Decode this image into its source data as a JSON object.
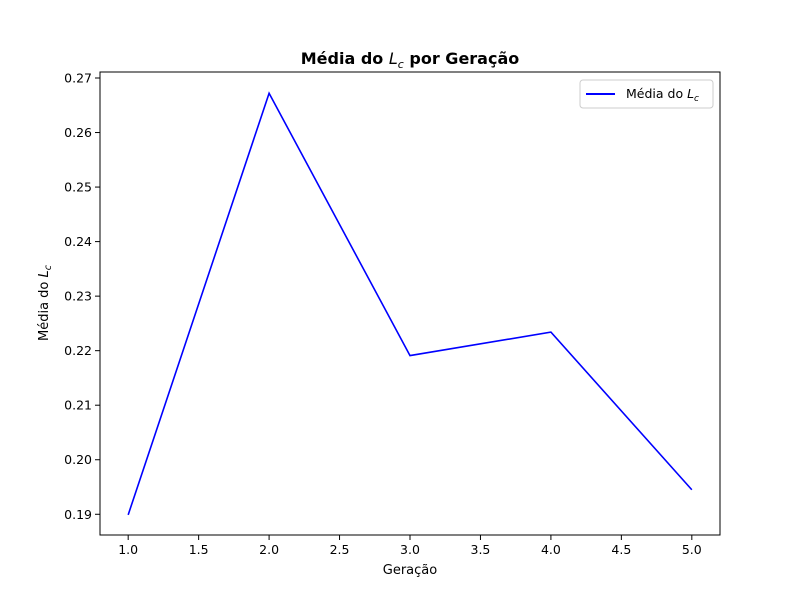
{
  "chart_data": {
    "type": "line",
    "title": {
      "prefix": "Média do ",
      "var": "L",
      "sub": "c",
      "suffix": " por Geração"
    },
    "xlabel": "Geração",
    "ylabel": {
      "prefix": "Média do ",
      "var": "L",
      "sub": "c"
    },
    "xlim": [
      0.8,
      5.2
    ],
    "ylim": [
      0.1862,
      0.2711
    ],
    "x_ticks": [
      1.0,
      1.5,
      2.0,
      2.5,
      3.0,
      3.5,
      4.0,
      4.5,
      5.0
    ],
    "x_tick_labels": [
      "1.0",
      "1.5",
      "2.0",
      "2.5",
      "3.0",
      "3.5",
      "4.0",
      "4.5",
      "5.0"
    ],
    "y_ticks": [
      0.19,
      0.2,
      0.21,
      0.22,
      0.23,
      0.24,
      0.25,
      0.26,
      0.27
    ],
    "y_tick_labels": [
      "0.19",
      "0.20",
      "0.21",
      "0.22",
      "0.23",
      "0.24",
      "0.25",
      "0.26",
      "0.27"
    ],
    "grid": false,
    "legend_position": "upper-right",
    "series": [
      {
        "name": {
          "prefix": "Média do ",
          "var": "L",
          "sub": "c"
        },
        "color": "#0000ff",
        "x": [
          1,
          2,
          3,
          4,
          5
        ],
        "y": [
          0.1899,
          0.2672,
          0.2191,
          0.2234,
          0.1945
        ]
      }
    ]
  }
}
